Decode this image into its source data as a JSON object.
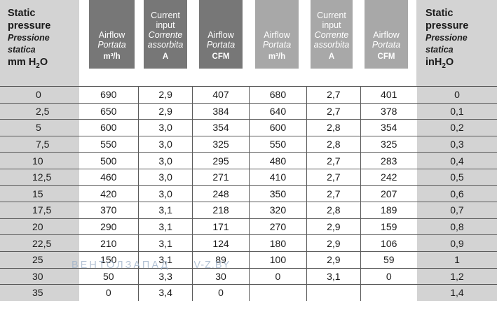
{
  "left_header": {
    "line1": "Static",
    "line2": "pressure",
    "it1": "Pressione",
    "it2": "statica",
    "unit": "mm H",
    "unit_sub": "2",
    "unit_end": "O"
  },
  "right_header": {
    "line1": "Static",
    "line2": "pressure",
    "it1": "Pressione",
    "it2": "statica",
    "unit": "inH",
    "unit_sub": "2",
    "unit_end": "O"
  },
  "columns": [
    {
      "l1": "",
      "l2": "Airflow",
      "it1": "Portata",
      "it2": "",
      "unit": "m³/h"
    },
    {
      "l1": "Current",
      "l2": "input",
      "it1": "Corrente",
      "it2": "assorbita",
      "unit": "A"
    },
    {
      "l1": "",
      "l2": "Airflow",
      "it1": "Portata",
      "it2": "",
      "unit": "CFM"
    },
    {
      "l1": "",
      "l2": "Airflow",
      "it1": "Portata",
      "it2": "",
      "unit": "m³/h"
    },
    {
      "l1": "Current",
      "l2": "input",
      "it1": "Corrente",
      "it2": "assorbita",
      "unit": "A"
    },
    {
      "l1": "",
      "l2": "Airflow",
      "it1": "Portata",
      "it2": "",
      "unit": "CFM"
    }
  ],
  "rows": [
    [
      "0",
      "690",
      "2,9",
      "407",
      "680",
      "2,7",
      "401",
      "0"
    ],
    [
      "2,5",
      "650",
      "2,9",
      "384",
      "640",
      "2,7",
      "378",
      "0,1"
    ],
    [
      "5",
      "600",
      "3,0",
      "354",
      "600",
      "2,8",
      "354",
      "0,2"
    ],
    [
      "7,5",
      "550",
      "3,0",
      "325",
      "550",
      "2,8",
      "325",
      "0,3"
    ],
    [
      "10",
      "500",
      "3,0",
      "295",
      "480",
      "2,7",
      "283",
      "0,4"
    ],
    [
      "12,5",
      "460",
      "3,0",
      "271",
      "410",
      "2,7",
      "242",
      "0,5"
    ],
    [
      "15",
      "420",
      "3,0",
      "248",
      "350",
      "2,7",
      "207",
      "0,6"
    ],
    [
      "17,5",
      "370",
      "3,1",
      "218",
      "320",
      "2,8",
      "189",
      "0,7"
    ],
    [
      "20",
      "290",
      "3,1",
      "171",
      "270",
      "2,9",
      "159",
      "0,8"
    ],
    [
      "22,5",
      "210",
      "3,1",
      "124",
      "180",
      "2,9",
      "106",
      "0,9"
    ],
    [
      "25",
      "150",
      "3,1",
      "89",
      "100",
      "2,9",
      "59",
      "1"
    ],
    [
      "30",
      "50",
      "3,3",
      "30",
      "0",
      "3,1",
      "0",
      "1,2"
    ],
    [
      "35",
      "0",
      "3,4",
      "0",
      "",
      "",
      "",
      "1,4"
    ]
  ],
  "watermark": {
    "brand": "ВЕНТОЛЗАПАД",
    "site": "V-Z.BY"
  }
}
